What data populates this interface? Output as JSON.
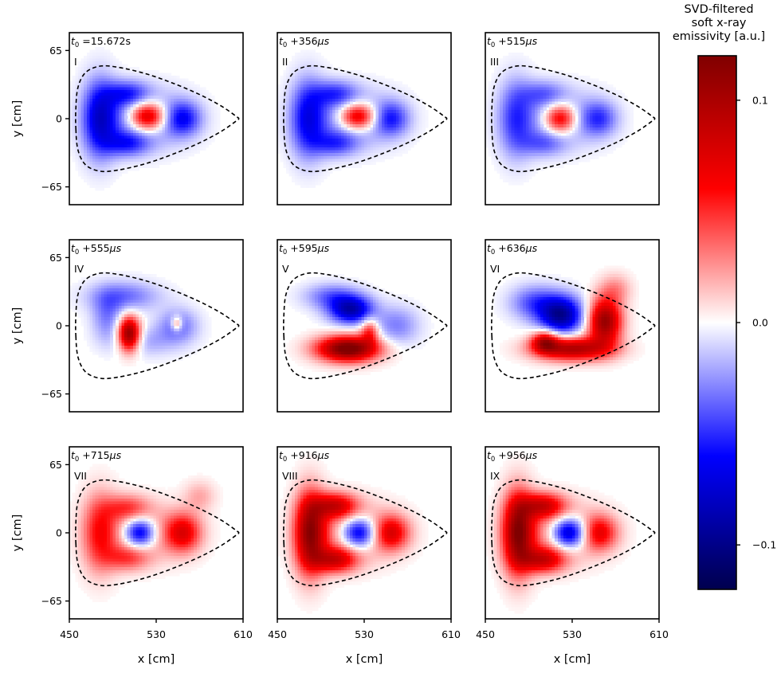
{
  "chart_data": {
    "type": "heatmap",
    "colormap": "seismic",
    "colorbar": {
      "title": [
        "SVD-filtered",
        "soft x-ray",
        "emissivity [a.u.]"
      ],
      "ticks": [
        {
          "value": 0.1,
          "label": "0.1"
        },
        {
          "value": 0.0,
          "label": "0.0"
        },
        {
          "value": -0.1,
          "label": "−0.1"
        }
      ],
      "range": [
        -0.12,
        0.12
      ]
    },
    "xlabel": "x [cm]",
    "ylabel": "y [cm]",
    "xlim": [
      450,
      610
    ],
    "ylim": [
      -82,
      82
    ],
    "xticks": [
      {
        "value": 450,
        "label": "450"
      },
      {
        "value": 530,
        "label": "530"
      },
      {
        "value": 610,
        "label": "610"
      }
    ],
    "yticks": [
      {
        "value": 65,
        "label": "65"
      },
      {
        "value": 0,
        "label": "0"
      },
      {
        "value": -65,
        "label": "−65"
      }
    ],
    "boundary": {
      "style": "dashed",
      "points": [
        [
          456,
          -10
        ],
        [
          458,
          -30
        ],
        [
          465,
          -44
        ],
        [
          478,
          -50
        ],
        [
          495,
          -49
        ],
        [
          520,
          -43
        ],
        [
          545,
          -34
        ],
        [
          570,
          -23
        ],
        [
          590,
          -12
        ],
        [
          604,
          -2
        ],
        [
          606,
          0
        ],
        [
          604,
          2
        ],
        [
          590,
          12
        ],
        [
          570,
          23
        ],
        [
          545,
          34
        ],
        [
          520,
          43
        ],
        [
          495,
          49
        ],
        [
          478,
          50
        ],
        [
          465,
          44
        ],
        [
          458,
          30
        ],
        [
          456,
          10
        ]
      ]
    },
    "panels": [
      {
        "roman": "I",
        "time_prefix": "t",
        "time_sub": "0",
        "time_rest": " =15.672s",
        "time_unit_italic": "",
        "blobs": [
          {
            "x": 478,
            "y": 0,
            "rx": 16,
            "ry": 36,
            "v": -0.07
          },
          {
            "x": 503,
            "y": 24,
            "rx": 20,
            "ry": 12,
            "v": -0.045
          },
          {
            "x": 503,
            "y": -24,
            "rx": 20,
            "ry": 12,
            "v": -0.045
          },
          {
            "x": 555,
            "y": 0,
            "rx": 16,
            "ry": 16,
            "v": -0.05
          },
          {
            "x": 520,
            "y": 0,
            "rx": 38,
            "ry": 26,
            "v": -0.04
          },
          {
            "x": 522,
            "y": 2,
            "rx": 17,
            "ry": 14,
            "v": 0.11
          }
        ]
      },
      {
        "roman": "II",
        "time_prefix": "t",
        "time_sub": "0",
        "time_rest": " +356",
        "time_unit_italic": "μs",
        "blobs": [
          {
            "x": 478,
            "y": 0,
            "rx": 16,
            "ry": 36,
            "v": -0.06
          },
          {
            "x": 503,
            "y": 24,
            "rx": 20,
            "ry": 12,
            "v": -0.04
          },
          {
            "x": 503,
            "y": -24,
            "rx": 20,
            "ry": 12,
            "v": -0.04
          },
          {
            "x": 555,
            "y": 0,
            "rx": 16,
            "ry": 16,
            "v": -0.045
          },
          {
            "x": 520,
            "y": 0,
            "rx": 38,
            "ry": 26,
            "v": -0.035
          },
          {
            "x": 524,
            "y": 2,
            "rx": 17,
            "ry": 13,
            "v": 0.1
          }
        ]
      },
      {
        "roman": "III",
        "time_prefix": "t",
        "time_sub": "0",
        "time_rest": " +515",
        "time_unit_italic": "μs",
        "blobs": [
          {
            "x": 478,
            "y": 0,
            "rx": 16,
            "ry": 36,
            "v": -0.045
          },
          {
            "x": 503,
            "y": 24,
            "rx": 20,
            "ry": 12,
            "v": -0.03
          },
          {
            "x": 503,
            "y": -24,
            "rx": 20,
            "ry": 12,
            "v": -0.03
          },
          {
            "x": 555,
            "y": 0,
            "rx": 16,
            "ry": 16,
            "v": -0.04
          },
          {
            "x": 520,
            "y": 0,
            "rx": 38,
            "ry": 26,
            "v": -0.03
          },
          {
            "x": 519,
            "y": 0,
            "rx": 15,
            "ry": 14,
            "v": 0.09
          }
        ]
      },
      {
        "roman": "IV",
        "time_prefix": "t",
        "time_sub": "0",
        "time_rest": " +555",
        "time_unit_italic": "μs",
        "blobs": [
          {
            "x": 500,
            "y": 28,
            "rx": 32,
            "ry": 14,
            "v": -0.035
          },
          {
            "x": 485,
            "y": 8,
            "rx": 14,
            "ry": 22,
            "v": -0.03
          },
          {
            "x": 550,
            "y": 0,
            "rx": 18,
            "ry": 16,
            "v": -0.035
          },
          {
            "x": 520,
            "y": -15,
            "rx": 30,
            "ry": 14,
            "v": -0.02
          },
          {
            "x": 505,
            "y": -8,
            "rx": 10,
            "ry": 16,
            "v": 0.12
          },
          {
            "x": 549,
            "y": 2,
            "rx": 5,
            "ry": 7,
            "v": 0.05
          }
        ]
      },
      {
        "roman": "V",
        "time_prefix": "t",
        "time_sub": "0",
        "time_rest": " +595",
        "time_unit_italic": "μs",
        "blobs": [
          {
            "x": 518,
            "y": 15,
            "rx": 20,
            "ry": 13,
            "v": -0.085
          },
          {
            "x": 500,
            "y": 28,
            "rx": 25,
            "ry": 12,
            "v": -0.035
          },
          {
            "x": 560,
            "y": 0,
            "rx": 20,
            "ry": 18,
            "v": -0.03
          },
          {
            "x": 515,
            "y": -22,
            "rx": 28,
            "ry": 12,
            "v": 0.13
          },
          {
            "x": 535,
            "y": -5,
            "rx": 8,
            "ry": 12,
            "v": 0.05
          }
        ]
      },
      {
        "roman": "VI",
        "time_prefix": "t",
        "time_sub": "0",
        "time_rest": " +636",
        "time_unit_italic": "μs",
        "blobs": [
          {
            "x": 520,
            "y": 10,
            "rx": 20,
            "ry": 18,
            "v": -0.095
          },
          {
            "x": 495,
            "y": 22,
            "rx": 22,
            "ry": 16,
            "v": -0.04
          },
          {
            "x": 530,
            "y": -22,
            "rx": 34,
            "ry": 11,
            "v": 0.1
          },
          {
            "x": 560,
            "y": 4,
            "rx": 15,
            "ry": 22,
            "v": 0.11
          },
          {
            "x": 505,
            "y": -15,
            "rx": 12,
            "ry": 10,
            "v": 0.08
          },
          {
            "x": 570,
            "y": 35,
            "rx": 14,
            "ry": 14,
            "v": 0.025
          }
        ]
      },
      {
        "roman": "VII",
        "time_prefix": "t",
        "time_sub": "0",
        "time_rest": " +715",
        "time_unit_italic": "μs",
        "blobs": [
          {
            "x": 478,
            "y": 0,
            "rx": 16,
            "ry": 36,
            "v": 0.055
          },
          {
            "x": 503,
            "y": 24,
            "rx": 20,
            "ry": 12,
            "v": 0.04
          },
          {
            "x": 503,
            "y": -24,
            "rx": 20,
            "ry": 12,
            "v": 0.04
          },
          {
            "x": 555,
            "y": 0,
            "rx": 16,
            "ry": 18,
            "v": 0.065
          },
          {
            "x": 520,
            "y": 0,
            "rx": 38,
            "ry": 26,
            "v": 0.03
          },
          {
            "x": 515,
            "y": 0,
            "rx": 15,
            "ry": 14,
            "v": -0.09
          },
          {
            "x": 570,
            "y": 35,
            "rx": 14,
            "ry": 14,
            "v": 0.02
          }
        ]
      },
      {
        "roman": "VIII",
        "time_prefix": "t",
        "time_sub": "0",
        "time_rest": " +916",
        "time_unit_italic": "μs",
        "blobs": [
          {
            "x": 480,
            "y": 0,
            "rx": 14,
            "ry": 38,
            "v": 0.105
          },
          {
            "x": 503,
            "y": 26,
            "rx": 20,
            "ry": 12,
            "v": 0.075
          },
          {
            "x": 503,
            "y": -26,
            "rx": 20,
            "ry": 12,
            "v": 0.075
          },
          {
            "x": 555,
            "y": 0,
            "rx": 16,
            "ry": 16,
            "v": 0.065
          },
          {
            "x": 520,
            "y": 0,
            "rx": 38,
            "ry": 26,
            "v": 0.04
          },
          {
            "x": 525,
            "y": 0,
            "rx": 17,
            "ry": 15,
            "v": -0.1
          }
        ]
      },
      {
        "roman": "IX",
        "time_prefix": "t",
        "time_sub": "0",
        "time_rest": " +956",
        "time_unit_italic": "μs",
        "blobs": [
          {
            "x": 480,
            "y": 0,
            "rx": 14,
            "ry": 38,
            "v": 0.11
          },
          {
            "x": 503,
            "y": 26,
            "rx": 20,
            "ry": 12,
            "v": 0.075
          },
          {
            "x": 503,
            "y": -26,
            "rx": 20,
            "ry": 12,
            "v": 0.075
          },
          {
            "x": 555,
            "y": 0,
            "rx": 16,
            "ry": 16,
            "v": 0.06
          },
          {
            "x": 520,
            "y": 0,
            "rx": 38,
            "ry": 26,
            "v": 0.04
          },
          {
            "x": 527,
            "y": 0,
            "rx": 17,
            "ry": 15,
            "v": -0.11
          }
        ]
      }
    ]
  }
}
